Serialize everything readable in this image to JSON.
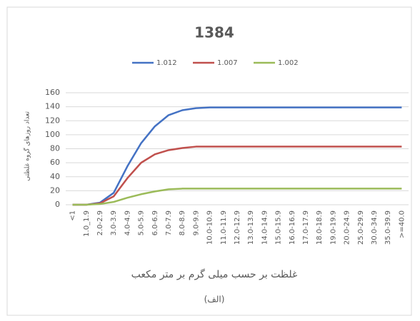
{
  "chart_data": {
    "type": "line",
    "title": "1384",
    "x_label": "غلظت بر حسب میلی گرم بر متر مکعب",
    "y_label": "تعداد روزهای گروه غلظتی",
    "subtitle": "(الف)",
    "categories": [
      "<1",
      "1.0_1.9",
      "2.0-2.9",
      "3.0-3.9",
      "4.0-4.9",
      "5.0-5.9",
      "6.0-6.9",
      "7.0-7.9",
      "8.0-8.9",
      "9.0-9.9",
      "10.0-10.9",
      "11.0-11.9",
      "12.0-12.9",
      "13.0-13.9",
      "14.0-14.9",
      "15.0-15.9",
      "16.0-16.9",
      "17.0-17.9",
      "18.0-18.9",
      "19.0-19.9",
      "20.0-24.9",
      "25.0-29.9",
      "30.0-34.9",
      "35.0-39.9",
      ">=40.0"
    ],
    "series": [
      {
        "name": "1.012",
        "color": "#4472c4",
        "values": [
          0,
          0,
          3,
          17,
          55,
          88,
          112,
          128,
          135,
          138,
          139,
          139,
          139,
          139,
          139,
          139,
          139,
          139,
          139,
          139,
          139,
          139,
          139,
          139,
          139
        ]
      },
      {
        "name": "1.007",
        "color": "#c0504d",
        "values": [
          0,
          0,
          2,
          12,
          38,
          60,
          72,
          78,
          81,
          83,
          83,
          83,
          83,
          83,
          83,
          83,
          83,
          83,
          83,
          83,
          83,
          83,
          83,
          83,
          83
        ]
      },
      {
        "name": "1.002",
        "color": "#9bbb59",
        "values": [
          0,
          0,
          1,
          4,
          10,
          15,
          19,
          22,
          23,
          23,
          23,
          23,
          23,
          23,
          23,
          23,
          23,
          23,
          23,
          23,
          23,
          23,
          23,
          23,
          23
        ]
      }
    ],
    "ylim": [
      0,
      160
    ],
    "yticks": [
      0,
      20,
      40,
      60,
      80,
      100,
      120,
      140,
      160
    ],
    "grid": true,
    "legend": "top"
  }
}
